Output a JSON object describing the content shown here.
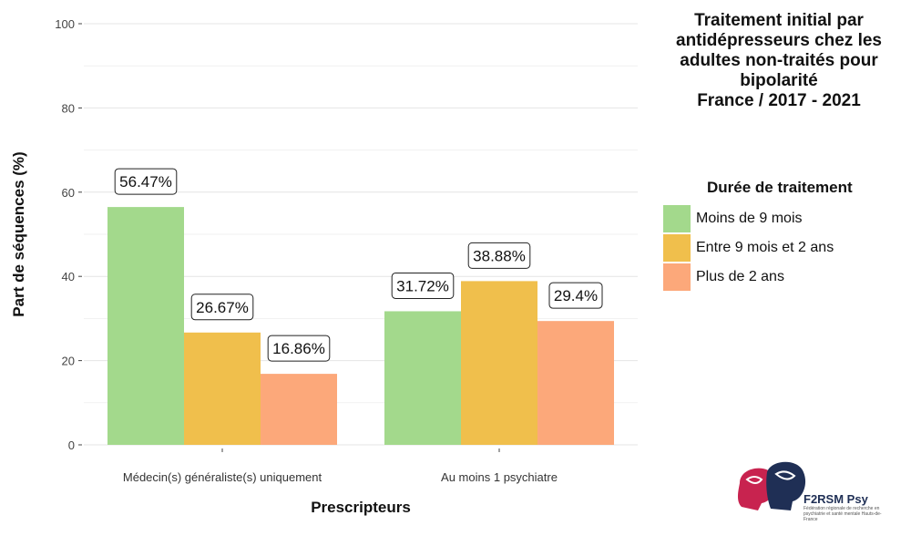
{
  "chart_data": {
    "type": "bar",
    "title_lines": [
      "Traitement initial par",
      "antidépresseurs chez les",
      "adultes non-traités pour",
      "bipolarité",
      "France  / 2017 - 2021"
    ],
    "xlabel": "Prescripteurs",
    "ylabel": "Part de séquences (%)",
    "ylim": [
      0,
      100
    ],
    "yticks": [
      0,
      20,
      40,
      60,
      80,
      100
    ],
    "categories": [
      "Médecin(s) généraliste(s) uniquement",
      "Au moins 1 psychiatre"
    ],
    "series": [
      {
        "name": "Moins de 9 mois",
        "values": [
          56.47,
          31.72
        ],
        "labels": [
          "56.47%",
          "31.72%"
        ],
        "color": "#a3d98c"
      },
      {
        "name": "Entre 9 mois et 2 ans",
        "values": [
          26.67,
          38.88
        ],
        "labels": [
          "26.67%",
          "38.88%"
        ],
        "color": "#f0bf4c"
      },
      {
        "name": "Plus de 2 ans",
        "values": [
          16.86,
          29.4
        ],
        "labels": [
          "16.86%",
          "29.4%"
        ],
        "color": "#fca87a"
      }
    ],
    "legend_title": "Durée de traitement",
    "legend_position": "right",
    "grid": true
  },
  "logo": {
    "name": "F2RSM Psy",
    "subtitle": "Fédération régionale de recherche en psychiatrie et santé mentale Hauts-de-France"
  }
}
